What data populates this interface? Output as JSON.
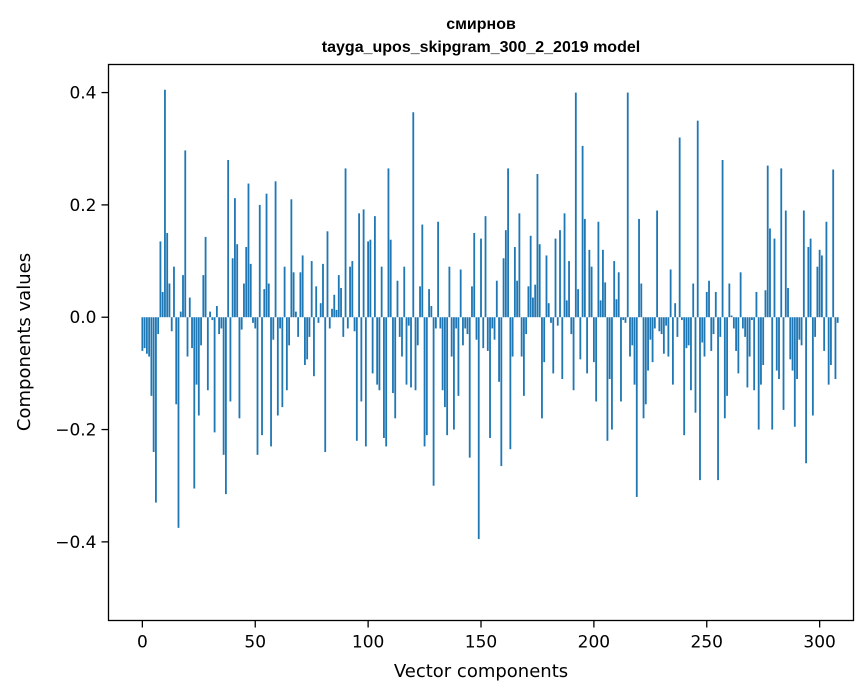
{
  "chart_data": {
    "type": "bar",
    "title": "смирнов",
    "subtitle": "tayga_upos_skipgram_300_2_2019 model",
    "xlabel": "Vector components",
    "ylabel": "Components values",
    "xlim": [
      -15,
      315
    ],
    "ylim": [
      -0.54,
      0.45
    ],
    "xticks": [
      0,
      50,
      100,
      150,
      200,
      250,
      300
    ],
    "xtick_labels": [
      "0",
      "50",
      "100",
      "150",
      "200",
      "250",
      "300"
    ],
    "yticks": [
      -0.4,
      -0.2,
      0.0,
      0.2,
      0.4
    ],
    "ytick_labels": [
      "−0.4",
      "−0.2",
      "0.0",
      "0.2",
      "0.4"
    ],
    "grid": false,
    "bar_color": "#1f77b4",
    "values": [
      -0.06,
      -0.055,
      -0.065,
      -0.07,
      -0.14,
      -0.24,
      -0.33,
      -0.03,
      0.135,
      0.045,
      0.405,
      0.15,
      0.06,
      -0.025,
      0.09,
      -0.155,
      -0.375,
      0.01,
      0.075,
      0.297,
      -0.07,
      0.035,
      -0.055,
      -0.305,
      -0.12,
      -0.175,
      -0.05,
      0.075,
      0.143,
      -0.13,
      0.01,
      -0.005,
      -0.205,
      0.02,
      -0.03,
      -0.02,
      -0.245,
      -0.315,
      0.28,
      -0.15,
      0.105,
      0.212,
      0.13,
      -0.18,
      -0.022,
      0.06,
      0.125,
      0.238,
      0.095,
      -0.01,
      -0.02,
      -0.245,
      0.2,
      -0.21,
      0.05,
      0.22,
      0.06,
      -0.23,
      -0.04,
      0.242,
      -0.175,
      -0.02,
      -0.16,
      0.09,
      -0.13,
      -0.05,
      0.21,
      0.08,
      0.01,
      -0.035,
      0.08,
      0.11,
      -0.085,
      -0.075,
      -0.035,
      0.1,
      -0.105,
      0.055,
      -0.01,
      0.025,
      0.095,
      -0.24,
      0.153,
      -0.02,
      0.015,
      0.04,
      0.013,
      0.075,
      0.052,
      -0.035,
      0.265,
      -0.02,
      0.09,
      0.1,
      -0.025,
      -0.22,
      0.185,
      -0.15,
      0.192,
      -0.23,
      0.135,
      0.138,
      -0.1,
      0.18,
      -0.12,
      -0.13,
      0.09,
      -0.215,
      -0.23,
      0.265,
      0.138,
      -0.135,
      -0.18,
      0.065,
      -0.035,
      -0.07,
      0.09,
      -0.12,
      -0.015,
      -0.125,
      0.365,
      -0.13,
      -0.05,
      0.055,
      0.165,
      -0.23,
      -0.21,
      0.05,
      0.02,
      -0.3,
      -0.02,
      0.17,
      -0.02,
      -0.13,
      -0.16,
      -0.21,
      0.09,
      -0.07,
      -0.2,
      -0.02,
      -0.14,
      0.085,
      -0.05,
      -0.02,
      -0.03,
      -0.25,
      0.055,
      0.15,
      -0.04,
      -0.395,
      0.14,
      -0.055,
      0.18,
      -0.06,
      -0.215,
      -0.02,
      -0.04,
      0.065,
      -0.115,
      -0.265,
      0.105,
      0.155,
      0.265,
      -0.235,
      -0.07,
      0.125,
      0.065,
      0.185,
      -0.07,
      -0.14,
      -0.03,
      0.055,
      0.145,
      0.035,
      0.058,
      0.255,
      0.13,
      -0.18,
      -0.08,
      0.11,
      0.025,
      -0.01,
      -0.1,
      0.14,
      -0.015,
      0.155,
      -0.11,
      0.185,
      0.03,
      0.1,
      -0.03,
      -0.13,
      0.4,
      0.05,
      -0.075,
      0.305,
      0.175,
      -0.1,
      0.12,
      0.09,
      -0.08,
      -0.15,
      0.17,
      0.03,
      0.12,
      0.062,
      -0.22,
      -0.11,
      -0.2,
      0.1,
      0.032,
      0.08,
      -0.15,
      -0.005,
      -0.01,
      0.4,
      -0.07,
      -0.05,
      -0.12,
      -0.32,
      0.175,
      0.06,
      -0.18,
      -0.155,
      -0.095,
      -0.04,
      -0.08,
      -0.02,
      0.19,
      -0.025,
      -0.03,
      -0.065,
      -0.015,
      -0.07,
      0.085,
      -0.12,
      0.025,
      -0.035,
      0.32,
      -0.005,
      -0.21,
      -0.055,
      -0.05,
      -0.13,
      0.06,
      -0.17,
      0.35,
      -0.29,
      -0.045,
      -0.07,
      0.045,
      0.065,
      -0.06,
      -0.03,
      0.045,
      -0.29,
      -0.035,
      0.28,
      -0.18,
      -0.14,
      0.06,
      0.003,
      -0.02,
      -0.06,
      -0.1,
      0.08,
      -0.02,
      -0.035,
      -0.125,
      -0.07,
      -0.005,
      -0.13,
      0.045,
      -0.2,
      -0.12,
      -0.085,
      0.048,
      0.27,
      0.158,
      -0.2,
      0.14,
      -0.095,
      -0.11,
      0.265,
      -0.165,
      0.19,
      0.052,
      -0.075,
      -0.095,
      -0.195,
      -0.11,
      -0.04,
      -0.05,
      0.19,
      -0.26,
      0.125,
      0.14,
      -0.175,
      -0.035,
      0.09,
      0.12,
      0.11,
      -0.06,
      0.17,
      -0.12,
      -0.085,
      0.263,
      -0.11,
      -0.01
    ]
  }
}
